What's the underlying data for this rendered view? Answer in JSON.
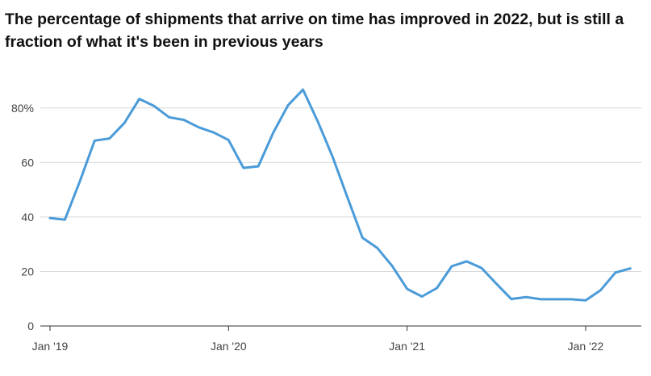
{
  "chart_data": {
    "type": "line",
    "title": "The percentage of shipments that arrive on time has improved in 2022, but is still a fraction of what it's been in previous years",
    "xlabel": "",
    "ylabel": "",
    "ylim": [
      0,
      90
    ],
    "grid": true,
    "legend": "none",
    "y_ticks": [
      {
        "value": 0,
        "label": "0"
      },
      {
        "value": 20,
        "label": "20"
      },
      {
        "value": 40,
        "label": "40"
      },
      {
        "value": 60,
        "label": "60"
      },
      {
        "value": 80,
        "label": "80%"
      }
    ],
    "x_ticks": [
      {
        "value": "2019-01",
        "label": "Jan '19"
      },
      {
        "value": "2020-01",
        "label": "Jan '20"
      },
      {
        "value": "2021-01",
        "label": "Jan '21"
      },
      {
        "value": "2022-01",
        "label": "Jan '22"
      }
    ],
    "series": [
      {
        "color": "#4a9bd8",
        "x": [
          "2019-01",
          "2019-02",
          "2019-03",
          "2019-04",
          "2019-05",
          "2019-06",
          "2019-07",
          "2019-08",
          "2019-09",
          "2019-10",
          "2019-11",
          "2019-12",
          "2020-01",
          "2020-02",
          "2020-03",
          "2020-04",
          "2020-05",
          "2020-06",
          "2020-07",
          "2020-08",
          "2020-09",
          "2020-10",
          "2020-11",
          "2020-12",
          "2021-01",
          "2021-02",
          "2021-03",
          "2021-04",
          "2021-05",
          "2021-06",
          "2021-07",
          "2021-08",
          "2021-09",
          "2021-10",
          "2021-11",
          "2021-12",
          "2022-01",
          "2022-02",
          "2022-03",
          "2022-04"
        ],
        "values": [
          39.6,
          39.0,
          53.0,
          68.0,
          68.8,
          74.5,
          83.3,
          80.7,
          76.6,
          75.6,
          72.9,
          71.0,
          68.2,
          58.0,
          58.6,
          70.9,
          81.0,
          86.7,
          75.0,
          62.0,
          47.0,
          32.4,
          28.6,
          22.0,
          13.6,
          10.8,
          13.9,
          21.9,
          23.7,
          21.3,
          15.5,
          9.9,
          10.6,
          9.8,
          9.8,
          9.8,
          9.4,
          13.1,
          19.6,
          21.1
        ]
      }
    ]
  }
}
